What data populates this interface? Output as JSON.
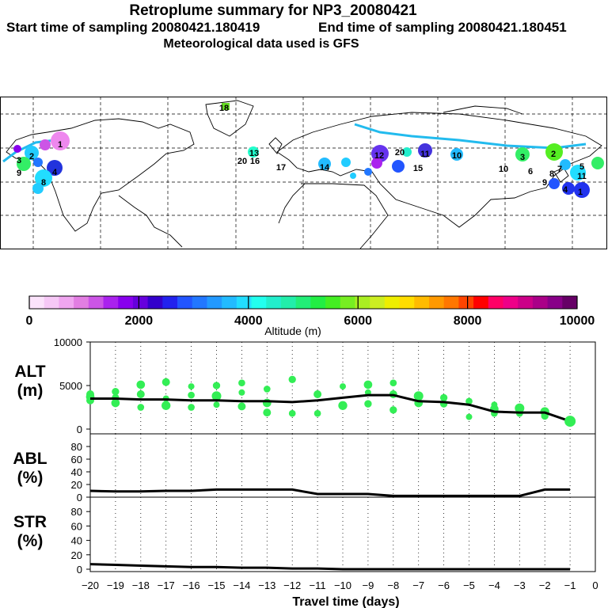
{
  "header": {
    "title": "Retroplume summary for NP3_20080421",
    "start_label": "Start time of sampling 20080421.180419",
    "end_label": "End time of sampling 20080421.180451",
    "met_label": "Meteorological data used is GFS"
  },
  "colorbar": {
    "tick_labels": [
      "0",
      "2000",
      "4000",
      "6000",
      "8000",
      "10000"
    ],
    "title": "Altitude (m)",
    "colors": [
      "#fbe3fb",
      "#f6c8f6",
      "#f0a6f0",
      "#e27ee2",
      "#cc55e6",
      "#aa22ee",
      "#8800ee",
      "#6600dd",
      "#3300cc",
      "#2222ee",
      "#2255ff",
      "#2277ff",
      "#2299ff",
      "#22bbff",
      "#22ddff",
      "#22ffee",
      "#22eecc",
      "#22eeaa",
      "#22ee77",
      "#22ee44",
      "#44ee22",
      "#77ee22",
      "#aaee22",
      "#ccee22",
      "#eeee00",
      "#ffdd00",
      "#ffbb00",
      "#ff9900",
      "#ff7700",
      "#ff4400",
      "#ff0000",
      "#ff0066",
      "#ee0088",
      "#cc0088",
      "#aa0088",
      "#880088",
      "#660066"
    ]
  },
  "map": {
    "labels": [
      {
        "t": "1",
        "c": "#ee88ee"
      },
      {
        "t": "2",
        "c": "#22ccff"
      },
      {
        "t": "3",
        "c": "#2255ff"
      },
      {
        "t": "4",
        "c": "#2233dd"
      },
      {
        "t": "8",
        "c": "#22ddff"
      },
      {
        "t": "9",
        "c": "#33ee66"
      },
      {
        "t": "20",
        "c": "#22ffcc"
      },
      {
        "t": "13",
        "c": "#22ffcc"
      },
      {
        "t": "18",
        "c": "#66dd22"
      },
      {
        "t": "17",
        "c": "#22aaff"
      },
      {
        "t": "14",
        "c": "#22bbff"
      },
      {
        "t": "12",
        "c": "#6633ee"
      },
      {
        "t": "20",
        "c": "#22eedd"
      },
      {
        "t": "11",
        "c": "#4433dd"
      },
      {
        "t": "10",
        "c": "#22bbff"
      },
      {
        "t": "15",
        "c": "#22ccee"
      },
      {
        "t": "7",
        "c": "#22bbff"
      },
      {
        "t": "6",
        "c": "#22ccff"
      },
      {
        "t": "2",
        "c": "#55ee22"
      },
      {
        "t": "3",
        "c": "#33ee66"
      },
      {
        "t": "5",
        "c": "#22aaff"
      },
      {
        "t": "11",
        "c": "#22ddff"
      },
      {
        "t": "1",
        "c": "#2233ee"
      },
      {
        "t": "4",
        "c": "#2233ee"
      },
      {
        "t": "8",
        "c": "#22ccee"
      },
      {
        "t": "9",
        "c": "#22ccee"
      },
      {
        "t": "16",
        "c": "#22ffcc"
      },
      {
        "t": "10",
        "c": "#22ccff"
      }
    ]
  },
  "chart_data": [
    {
      "type": "scatter",
      "panel": "ALT",
      "ylabel": "ALT\n(m)",
      "ylabel_lines": [
        "ALT",
        "(m)"
      ],
      "ylim": [
        0,
        10000
      ],
      "xlim": [
        -20,
        0
      ],
      "yticks": [
        "10000",
        "5000",
        "0"
      ],
      "series": [
        {
          "name": "median",
          "x": [
            -20,
            -19,
            -18,
            -17,
            -16,
            -15,
            -14,
            -13,
            -12,
            -11,
            -10,
            -9,
            -8,
            -7,
            -6,
            -5,
            -4,
            -3,
            -2,
            -1
          ],
          "values": [
            3500,
            3500,
            3400,
            3400,
            3300,
            3300,
            3200,
            3200,
            3100,
            3300,
            3600,
            3900,
            3900,
            3200,
            3100,
            2800,
            2000,
            1900,
            1900,
            900
          ]
        },
        {
          "name": "plume",
          "points": [
            [
              -20,
              3700
            ],
            [
              -20,
              3300
            ],
            [
              -20,
              4000
            ],
            [
              -19,
              3600
            ],
            [
              -19,
              3000
            ],
            [
              -19,
              4300
            ],
            [
              -18,
              5100
            ],
            [
              -18,
              4000
            ],
            [
              -18,
              2500
            ],
            [
              -17,
              5400
            ],
            [
              -17,
              3500
            ],
            [
              -17,
              2700
            ],
            [
              -16,
              4900
            ],
            [
              -16,
              3900
            ],
            [
              -16,
              2500
            ],
            [
              -15,
              5000
            ],
            [
              -15,
              3800
            ],
            [
              -15,
              2800
            ],
            [
              -14,
              5300
            ],
            [
              -14,
              4200
            ],
            [
              -14,
              2600
            ],
            [
              -13,
              4600
            ],
            [
              -13,
              3000
            ],
            [
              -13,
              1900
            ],
            [
              -12,
              5700
            ],
            [
              -12,
              1800
            ],
            [
              -11,
              4000
            ],
            [
              -11,
              1800
            ],
            [
              -10,
              4900
            ],
            [
              -10,
              2700
            ],
            [
              -9,
              5100
            ],
            [
              -9,
              4200
            ],
            [
              -9,
              2900
            ],
            [
              -8,
              5300
            ],
            [
              -8,
              4000
            ],
            [
              -8,
              2200
            ],
            [
              -7,
              3800
            ],
            [
              -7,
              3000
            ],
            [
              -6,
              3600
            ],
            [
              -6,
              2900
            ],
            [
              -5,
              3200
            ],
            [
              -5,
              1400
            ],
            [
              -4,
              2800
            ],
            [
              -4,
              1800
            ],
            [
              -4,
              2300
            ],
            [
              -3,
              2400
            ],
            [
              -3,
              1800
            ],
            [
              -2,
              2000
            ],
            [
              -2,
              1500
            ],
            [
              -1,
              900
            ]
          ]
        }
      ]
    },
    {
      "type": "line",
      "panel": "ABL",
      "ylabel_lines": [
        "ABL",
        "(%)"
      ],
      "ylim": [
        0,
        100
      ],
      "yticks": [
        "80",
        "60",
        "40",
        "20",
        "0"
      ],
      "x": [
        -20,
        -19,
        -18,
        -17,
        -16,
        -15,
        -14,
        -13,
        -12,
        -11,
        -10,
        -9,
        -8,
        -7,
        -6,
        -5,
        -4,
        -3,
        -2,
        -1
      ],
      "values": [
        10,
        9,
        9,
        10,
        10,
        12,
        12,
        12,
        12,
        5,
        5,
        5,
        2,
        2,
        2,
        2,
        2,
        2,
        12,
        12
      ]
    },
    {
      "type": "line",
      "panel": "STR",
      "ylabel_lines": [
        "STR",
        "(%)"
      ],
      "ylim": [
        0,
        100
      ],
      "yticks": [
        "80",
        "60",
        "40",
        "20",
        "0"
      ],
      "x": [
        -20,
        -19,
        -18,
        -17,
        -16,
        -15,
        -14,
        -13,
        -12,
        -11,
        -10,
        -9,
        -8,
        -7,
        -6,
        -5,
        -4,
        -3,
        -2,
        -1
      ],
      "values": [
        7,
        6,
        5,
        4,
        3,
        3,
        2,
        2,
        1,
        1,
        0,
        0,
        0,
        0,
        0,
        0,
        0,
        0,
        0,
        0
      ],
      "xlabel": "Travel time (days)",
      "xtick_labels": [
        "−20",
        "−19",
        "−18",
        "−17",
        "−16",
        "−15",
        "−14",
        "−13",
        "−12",
        "−11",
        "−10",
        "−9",
        "−8",
        "−7",
        "−6",
        "−5",
        "−4",
        "−3",
        "−2",
        "−1",
        "0"
      ]
    }
  ]
}
